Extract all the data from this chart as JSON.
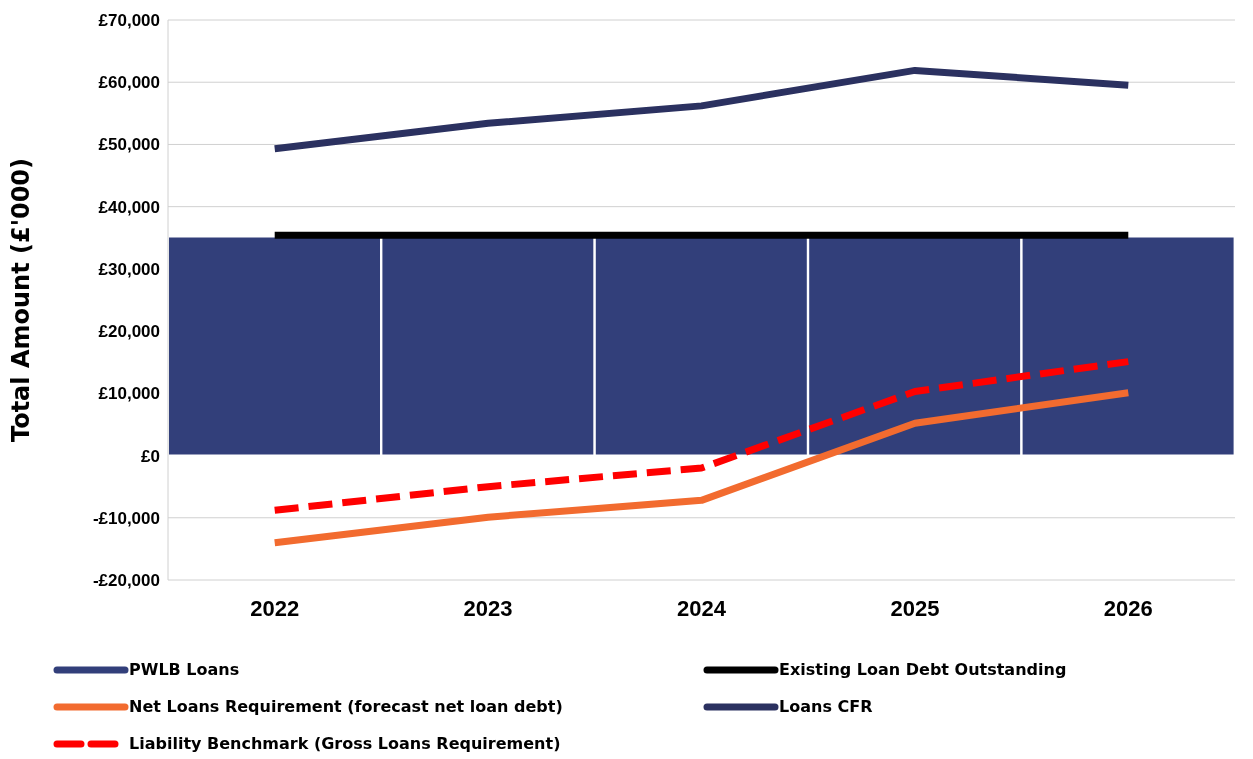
{
  "chart_data": {
    "type": "line",
    "ylabel": "Total Amount (£'000)",
    "categories": [
      "2022",
      "2023",
      "2024",
      "2025",
      "2026"
    ],
    "series": [
      {
        "name": "PWLB Loans",
        "type": "bar",
        "color": "#323f7a",
        "values": [
          35200,
          35200,
          35200,
          35200,
          35200
        ]
      },
      {
        "name": "Existing Loan Debt Outstanding",
        "color": "#000000",
        "values": [
          35400,
          35400,
          35400,
          35400,
          35400
        ]
      },
      {
        "name": "Net Loans Requirement (forecast net loan debt)",
        "color": "#f26b2f",
        "values": [
          -14000,
          -9900,
          -7200,
          5200,
          10100
        ]
      },
      {
        "name": "Loans CFR",
        "color": "#2b3160",
        "values": [
          49300,
          53400,
          56200,
          61900,
          59500
        ]
      },
      {
        "name": "Liability Benchmark (Gross Loans Requirement)",
        "color": "#ff0000",
        "line_style": "dashed",
        "values": [
          -8800,
          -5000,
          -2000,
          10300,
          15100
        ]
      }
    ],
    "ylim": [
      -20000,
      70000
    ],
    "yticks": [
      {
        "value": -20000,
        "label": "-£20,000"
      },
      {
        "value": -10000,
        "label": "-£10,000"
      },
      {
        "value": 0,
        "label": "£0"
      },
      {
        "value": 10000,
        "label": "£10,000"
      },
      {
        "value": 20000,
        "label": "£20,000"
      },
      {
        "value": 30000,
        "label": "£30,000"
      },
      {
        "value": 40000,
        "label": "£40,000"
      },
      {
        "value": 50000,
        "label": "£50,000"
      },
      {
        "value": 60000,
        "label": "£60,000"
      },
      {
        "value": 70000,
        "label": "£70,000"
      }
    ],
    "grid": "y",
    "legend": "bottom",
    "line_style": "solid",
    "marker": "none"
  }
}
